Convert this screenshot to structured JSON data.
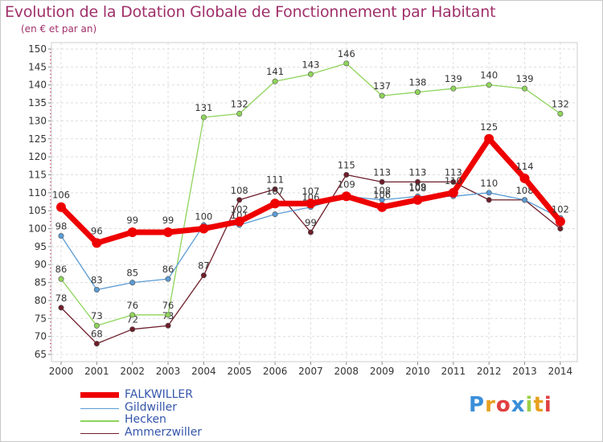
{
  "chart_data": {
    "type": "line",
    "title": "Evolution de la Dotation Globale de Fonctionnement par Habitant",
    "subtitle": "(en € et par an)",
    "xlabel": "",
    "ylabel": "",
    "x": [
      "2000",
      "2001",
      "2002",
      "2003",
      "2004",
      "2005",
      "2006",
      "2007",
      "2008",
      "2009",
      "2010",
      "2011",
      "2012",
      "2013",
      "2014"
    ],
    "ylim": [
      65,
      150
    ],
    "yticks": [
      "65",
      "70",
      "75",
      "80",
      "85",
      "90",
      "95",
      "100",
      "105",
      "110",
      "115",
      "120",
      "125",
      "130",
      "135",
      "140",
      "145",
      "150"
    ],
    "grid": true,
    "legend_position": "bottom-left",
    "series": [
      {
        "name": "Ammerzwiller",
        "color": "#6e1e2a",
        "values": [
          78,
          68,
          72,
          73,
          87,
          108,
          111,
          99,
          115,
          113,
          113,
          113,
          108,
          108,
          100
        ],
        "labels": [
          "78",
          "68",
          "72",
          "73",
          "87",
          "108",
          "111",
          "99",
          "115",
          "113",
          "113",
          "113",
          "",
          "108",
          ""
        ]
      },
      {
        "name": "Hecken",
        "color": "#8fd45a",
        "values": [
          86,
          73,
          76,
          76,
          131,
          132,
          141,
          143,
          146,
          137,
          138,
          139,
          140,
          139,
          132
        ],
        "labels": [
          "86",
          "73",
          "76",
          "76",
          "131",
          "132",
          "141",
          "143",
          "146",
          "137",
          "138",
          "139",
          "140",
          "139",
          "132"
        ]
      },
      {
        "name": "Gildwiller",
        "color": "#5b9bd5",
        "values": [
          98,
          83,
          85,
          86,
          101,
          101,
          104,
          106,
          109,
          108,
          109,
          109,
          110,
          108,
          103
        ],
        "labels": [
          "98",
          "83",
          "85",
          "86",
          "",
          "101",
          "",
          "106",
          "",
          "108",
          "109",
          "",
          "110",
          "",
          ""
        ]
      },
      {
        "name": "FALKWILLER",
        "color": "#ee0000",
        "values": [
          106,
          96,
          99,
          99,
          100,
          102,
          107,
          107,
          109,
          106,
          108,
          110,
          125,
          114,
          102
        ],
        "labels": [
          "106",
          "96",
          "99",
          "99",
          "100",
          "102",
          "107",
          "107",
          "109",
          "106",
          "108",
          "110",
          "125",
          "114",
          "102"
        ]
      }
    ]
  },
  "legend": {
    "items": [
      "FALKWILLER",
      "Gildwiller",
      "Hecken",
      "Ammerzwiller"
    ]
  },
  "logo": {
    "letters": [
      "P",
      "r",
      "o",
      "x",
      "i",
      "t",
      "i"
    ],
    "colors": [
      "#3a8fd8",
      "#e8a020",
      "#e04040",
      "#3a8fd8",
      "#9bd048",
      "#e8a020",
      "#e04040"
    ]
  }
}
